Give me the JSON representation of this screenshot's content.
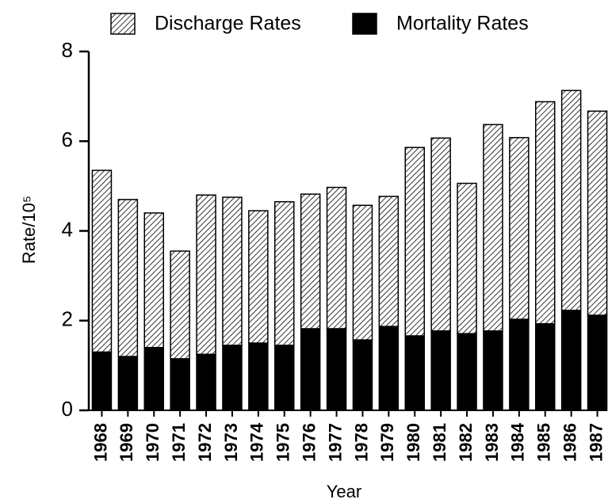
{
  "chart_data": {
    "type": "stacked_bar",
    "categories": [
      "1968",
      "1969",
      "1970",
      "1971",
      "1972",
      "1973",
      "1974",
      "1975",
      "1976",
      "1977",
      "1978",
      "1979",
      "1980",
      "1981",
      "1982",
      "1983",
      "1984",
      "1985",
      "1986",
      "1987"
    ],
    "series": [
      {
        "name": "Discharge Rates",
        "color": "#000000",
        "pattern": "hatch",
        "values": [
          4.05,
          3.5,
          3.0,
          2.4,
          3.55,
          3.3,
          2.95,
          3.2,
          3.0,
          3.15,
          3.0,
          2.9,
          4.2,
          4.3,
          3.35,
          4.6,
          4.05,
          4.95,
          4.9,
          4.55
        ]
      },
      {
        "name": "Mortality Rates",
        "color": "#000000",
        "pattern": "solid",
        "values": [
          1.3,
          1.2,
          1.4,
          1.15,
          1.25,
          1.45,
          1.5,
          1.45,
          1.82,
          1.82,
          1.57,
          1.87,
          1.66,
          1.77,
          1.71,
          1.77,
          2.03,
          1.93,
          2.23,
          2.12
        ]
      }
    ],
    "ylim": [
      0,
      8
    ],
    "yticks": [
      0,
      2,
      4,
      6,
      8
    ],
    "x_label": "Year",
    "y_label": "Rate/10⁵",
    "legend": "top",
    "grid": false
  }
}
